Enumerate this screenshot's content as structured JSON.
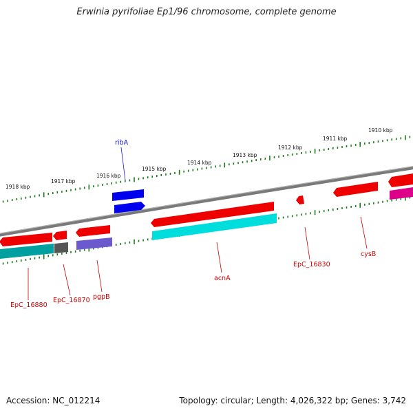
{
  "title": "Erwinia pyrifoliae Ep1/96 chromosome, complete genome",
  "footer": {
    "accession": "Accession: NC_012214",
    "summary": "Topology: circular; Length: 4,026,322 bp; Genes: 3,742"
  },
  "colors": {
    "backbone": "#808080",
    "tick": "#1a7a1a",
    "cds_red": "#ee0000",
    "cyan": "#00dddd",
    "teal": "#00a0a0",
    "gray": "#555555",
    "purple": "#6a5acd",
    "blue": "#0000ee",
    "magenta": "#dd0088",
    "label_red": "#cc0000",
    "label_blue": "#1a1acc"
  },
  "scale": {
    "labels": [
      "1918 kbp",
      "1917 kbp",
      "1916 kbp",
      "1915 kbp",
      "1914 kbp",
      "1913 kbp",
      "1912 kbp",
      "1911 kbp",
      "1910 kbp"
    ]
  },
  "genes": {
    "ribA": "ribA",
    "EpC_16880": "EpC_16880",
    "EpC_16870": "EpC_16870",
    "pgpB": "pgpB",
    "acnA": "acnA",
    "EpC_16830": "EpC_16830",
    "cysB": "cysB"
  }
}
